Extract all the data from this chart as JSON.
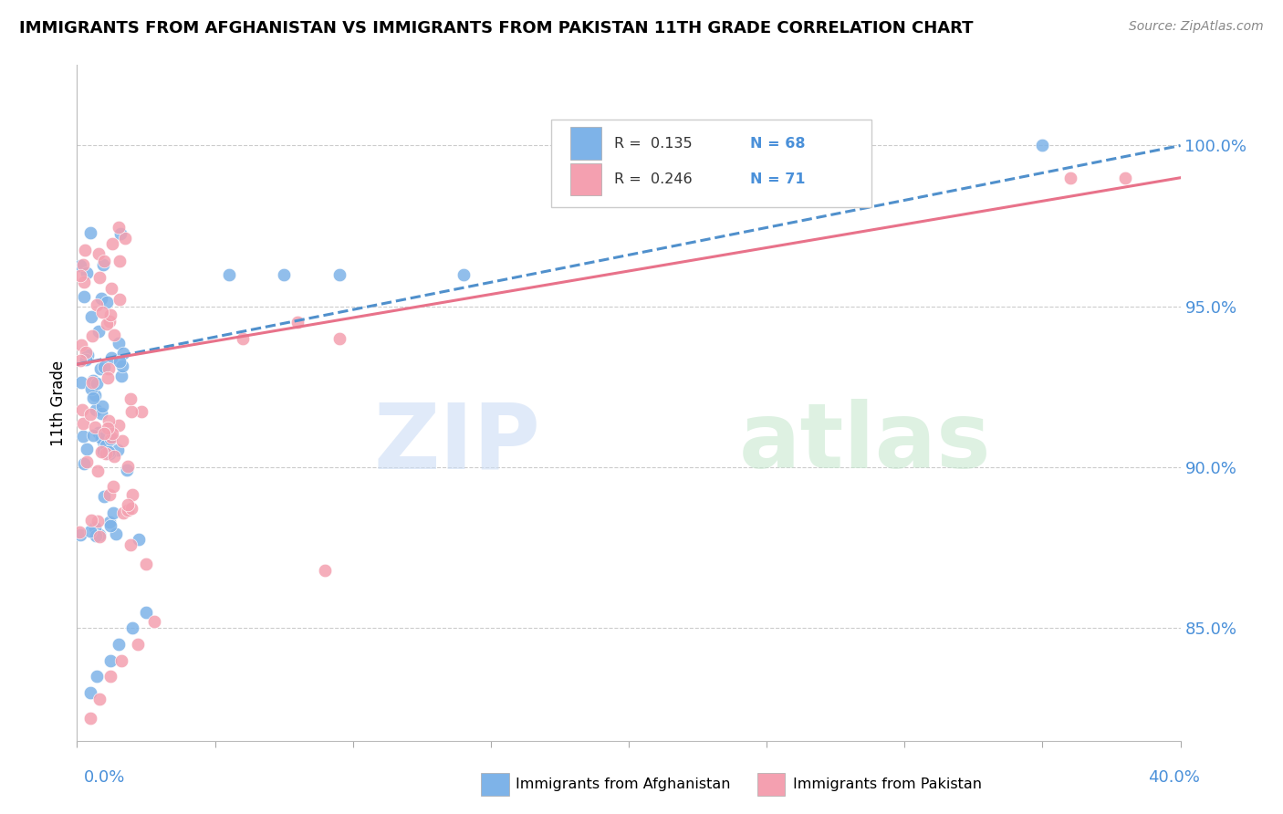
{
  "title": "IMMIGRANTS FROM AFGHANISTAN VS IMMIGRANTS FROM PAKISTAN 11TH GRADE CORRELATION CHART",
  "source": "Source: ZipAtlas.com",
  "ylabel": "11th Grade",
  "yaxis_labels": [
    "100.0%",
    "95.0%",
    "90.0%",
    "85.0%"
  ],
  "yaxis_values": [
    1.0,
    0.95,
    0.9,
    0.85
  ],
  "x_min": 0.0,
  "x_max": 0.4,
  "y_min": 0.815,
  "y_max": 1.025,
  "afghanistan_color": "#7eb3e8",
  "pakistan_color": "#f4a0b0",
  "afghanistan_line_color": "#5090cc",
  "pakistan_line_color": "#e8728a",
  "afg_R": 0.135,
  "afg_N": 68,
  "pak_R": 0.246,
  "pak_N": 71,
  "afg_seed": 10,
  "pak_seed": 20
}
